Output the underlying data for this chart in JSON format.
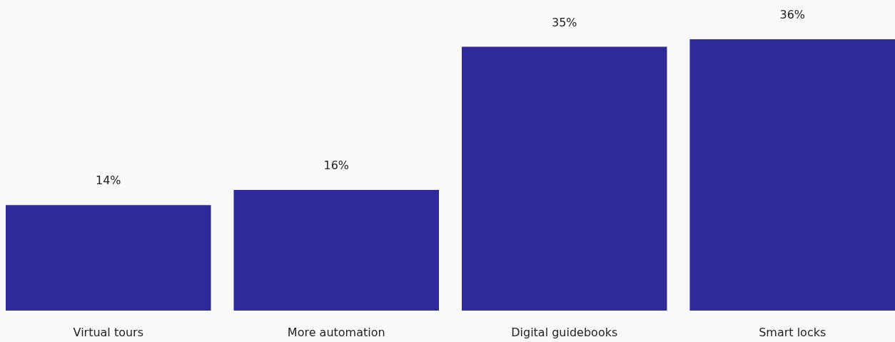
{
  "chart_data": {
    "type": "bar",
    "categories": [
      "Virtual tours",
      "More automation",
      "Digital guidebooks",
      "Smart locks"
    ],
    "values": [
      14,
      16,
      35,
      36
    ],
    "value_labels": [
      "14%",
      "16%",
      "35%",
      "36%"
    ],
    "color": "#2e2a9c"
  }
}
